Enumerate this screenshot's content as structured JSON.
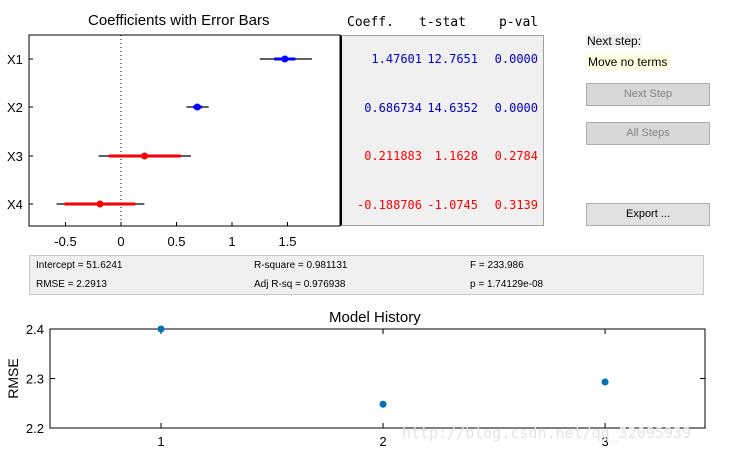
{
  "coef_plot": {
    "title": "Coefficients with Error Bars",
    "x_ticks": [
      "-0.5",
      "0",
      "0.5",
      "1",
      "1.5"
    ],
    "terms": [
      {
        "name": "X1",
        "estimate": 1.476,
        "ci_inner": [
          1.38,
          1.57
        ],
        "ci_outer": [
          1.25,
          1.72
        ],
        "color": "#0000ff"
      },
      {
        "name": "X2",
        "estimate": 0.687,
        "ci_inner": [
          0.65,
          0.73
        ],
        "ci_outer": [
          0.59,
          0.79
        ],
        "color": "#0000ff"
      },
      {
        "name": "X3",
        "estimate": 0.212,
        "ci_inner": [
          -0.11,
          0.54
        ],
        "ci_outer": [
          -0.2,
          0.63
        ],
        "color": "#ff0000"
      },
      {
        "name": "X4",
        "estimate": -0.189,
        "ci_inner": [
          -0.51,
          0.13
        ],
        "ci_outer": [
          -0.58,
          0.21
        ],
        "color": "#ff0000"
      }
    ]
  },
  "table": {
    "headers": [
      "Coeff.",
      "t-stat",
      "p-val"
    ],
    "rows": [
      {
        "coeff": "1.47601",
        "tstat": "12.7651",
        "pval": "0.0000",
        "color": "#0000c8"
      },
      {
        "coeff": "0.686734",
        "tstat": "14.6352",
        "pval": "0.0000",
        "color": "#0000c8"
      },
      {
        "coeff": "0.211883",
        "tstat": "1.1628",
        "pval": "0.2784",
        "color": "#ff0000"
      },
      {
        "coeff": "-0.188706",
        "tstat": "-1.0745",
        "pval": "0.3139",
        "color": "#ff0000"
      }
    ]
  },
  "side": {
    "next_step_label": "Next step:",
    "next_step_value": "Move no terms",
    "buttons": {
      "next_step": "Next Step",
      "all_steps": "All Steps",
      "export": "Export ..."
    }
  },
  "stats": {
    "intercept": "Intercept = 51.6241",
    "rmse": "RMSE = 2.2913",
    "rsq": "R-square = 0.981131",
    "adj_rsq": "Adj R-sq = 0.976938",
    "f": "F = 233.986",
    "p": "p = 1.74129e-08"
  },
  "chart_data": {
    "type": "scatter",
    "title": "Model History",
    "xlabel": "",
    "ylabel": "RMSE",
    "x": [
      1,
      2,
      3
    ],
    "y": [
      2.4,
      2.248,
      2.293
    ],
    "xlim": [
      0.5,
      3.45
    ],
    "ylim": [
      2.2,
      2.4
    ],
    "x_ticks": [
      "1",
      "2",
      "3"
    ],
    "y_ticks": [
      "2.2",
      "2.3",
      "2.4"
    ],
    "color": "#0072bd"
  },
  "watermark": "http://blog.csdn.net/qq_32095939"
}
